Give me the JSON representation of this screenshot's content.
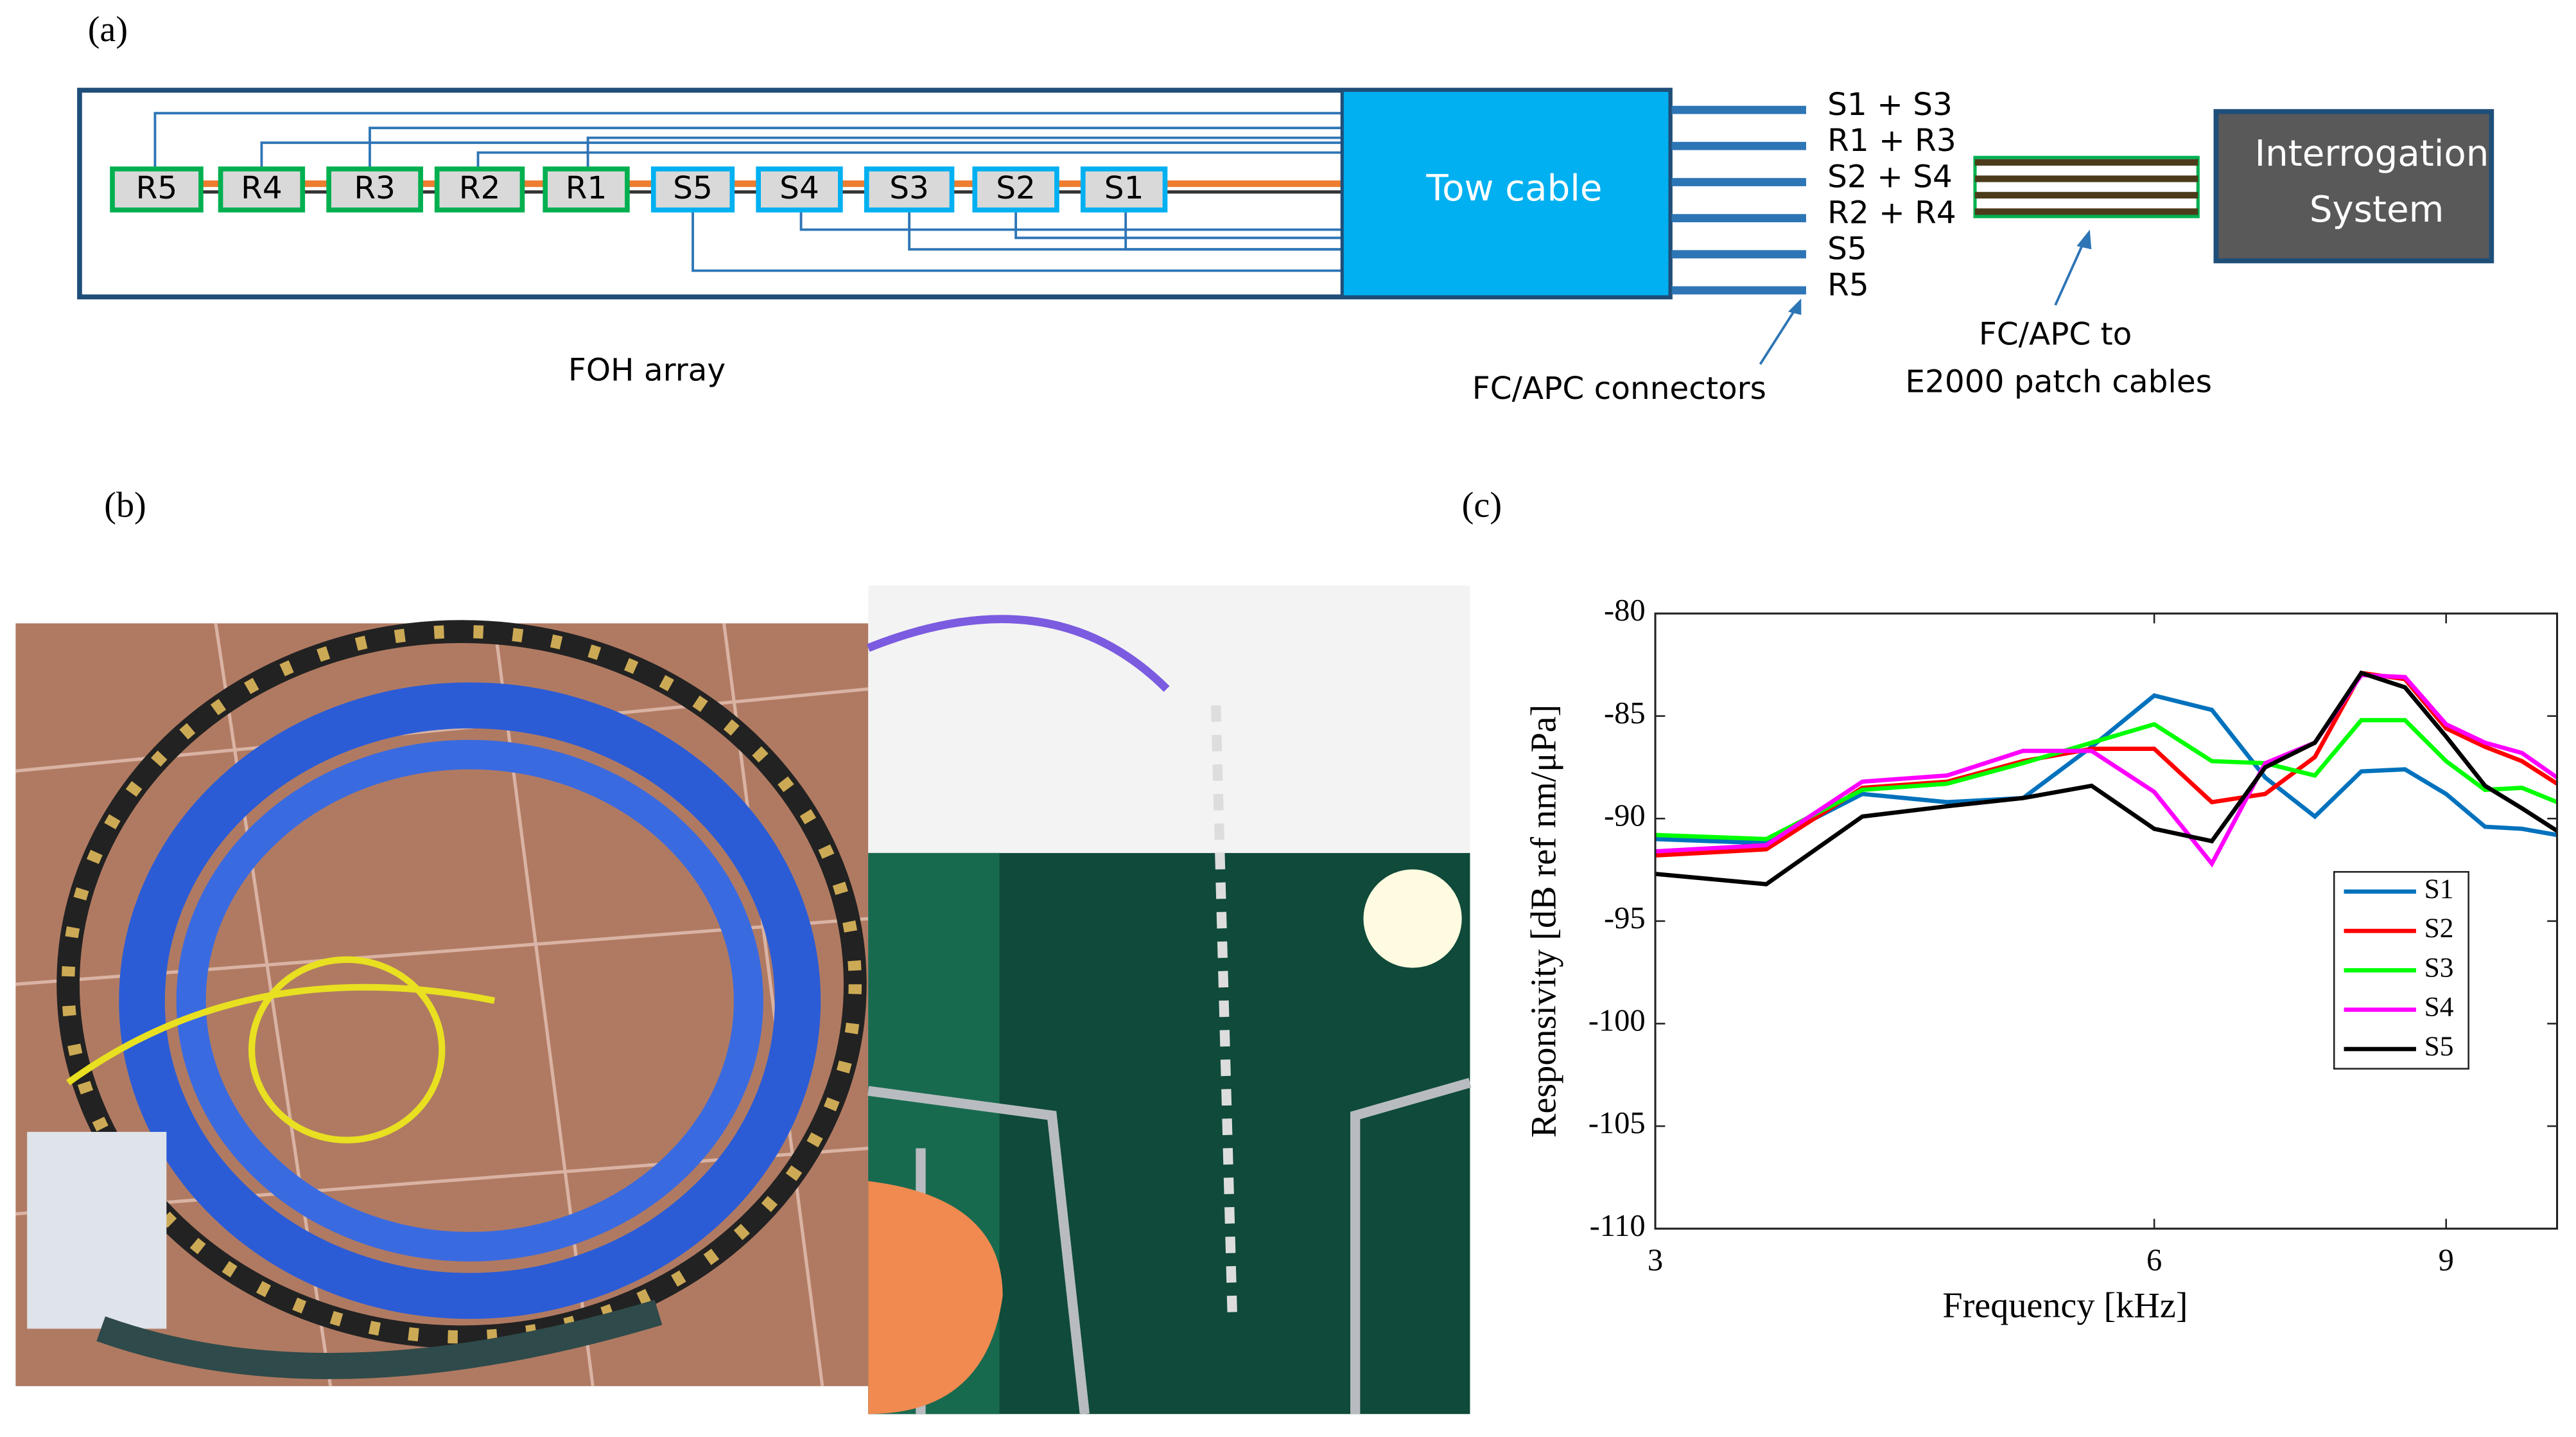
{
  "panel_labels": {
    "a": "(a)",
    "b": "(b)",
    "c": "(c)"
  },
  "diagram": {
    "sensors": [
      "R5",
      "R4",
      "R3",
      "R2",
      "R1",
      "S5",
      "S4",
      "S3",
      "S2",
      "S1"
    ],
    "tow_cable": "Tow cable",
    "connectors": [
      "S1 + S3",
      "R1 + R3",
      "S2 + S4",
      "R2 + R4",
      "S5",
      "R5"
    ],
    "array_label": "FOH array",
    "connectors_label": "FC/APC connectors",
    "patch_label": [
      "FC/APC to",
      "E2000 patch cables"
    ],
    "interrogation": [
      "Interrogation",
      "System"
    ]
  },
  "chart_data": {
    "type": "line",
    "x_label": "Frequency [kHz]",
    "y_label": "Responsivity [dB ref nm/μPa]",
    "xscale": "log",
    "xlim": [
      3,
      10.5
    ],
    "ylim": [
      -110,
      -80
    ],
    "xticks": [
      3,
      6,
      9
    ],
    "yticks": [
      -110,
      -105,
      -100,
      -95,
      -90,
      -85,
      -80
    ],
    "legend": "right",
    "x": [
      3,
      3.5,
      4,
      4.5,
      5,
      5.5,
      6,
      6.5,
      7,
      7.5,
      8,
      8.5,
      9,
      9.5,
      10,
      10.5
    ],
    "series": [
      {
        "name": "S1",
        "color": "#0072bd",
        "values": [
          -91,
          -91.2,
          -88.8,
          -89.2,
          -89,
          -86.5,
          -84,
          -84.7,
          -88,
          -89.9,
          -87.7,
          -87.6,
          -88.8,
          -90.4,
          -90.5,
          -90.8
        ]
      },
      {
        "name": "S2",
        "color": "#ff0000",
        "values": [
          -91.8,
          -91.5,
          -88.5,
          -88.2,
          -87.2,
          -86.6,
          -86.6,
          -89.2,
          -88.8,
          -87,
          -82.9,
          -83.2,
          -85.6,
          -86.5,
          -87.2,
          -88.3
        ]
      },
      {
        "name": "S3",
        "color": "#00ff00",
        "values": [
          -90.8,
          -91,
          -88.6,
          -88.3,
          -87.3,
          -86.3,
          -85.4,
          -87.2,
          -87.3,
          -87.9,
          -85.2,
          -85.2,
          -87.2,
          -88.6,
          -88.5,
          -89.2
        ]
      },
      {
        "name": "S4",
        "color": "#ff00ff",
        "values": [
          -91.6,
          -91.3,
          -88.2,
          -87.9,
          -86.7,
          -86.7,
          -88.7,
          -92.2,
          -87.3,
          -86.3,
          -83,
          -83.1,
          -85.4,
          -86.3,
          -86.8,
          -88
        ]
      },
      {
        "name": "S5",
        "color": "#000000",
        "values": [
          -92.7,
          -93.2,
          -89.9,
          -89.4,
          -89,
          -88.4,
          -90.5,
          -91.1,
          -87.5,
          -86.3,
          -82.9,
          -83.6,
          -86,
          -88.4,
          -89.5,
          -90.6
        ]
      }
    ]
  }
}
